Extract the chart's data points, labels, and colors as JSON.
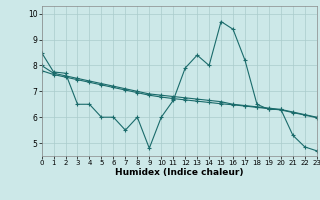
{
  "title": "",
  "xlabel": "Humidex (Indice chaleur)",
  "background_color": "#cce8e8",
  "grid_color": "#aacccc",
  "line_color": "#1a6b6b",
  "xlim": [
    0,
    23
  ],
  "ylim": [
    4.5,
    10.3
  ],
  "yticks": [
    5,
    6,
    7,
    8,
    9,
    10
  ],
  "xticks": [
    0,
    1,
    2,
    3,
    4,
    5,
    6,
    7,
    8,
    9,
    10,
    11,
    12,
    13,
    14,
    15,
    16,
    17,
    18,
    19,
    20,
    21,
    22,
    23
  ],
  "series": [
    {
      "x": [
        0,
        1,
        2,
        3,
        4,
        5,
        6,
        7,
        8,
        9,
        10,
        11,
        12,
        13,
        14,
        15,
        16,
        17,
        18,
        19,
        20,
        21,
        22,
        23
      ],
      "y": [
        8.5,
        7.75,
        7.7,
        6.5,
        6.5,
        6.0,
        6.0,
        5.5,
        6.0,
        4.8,
        6.0,
        6.65,
        7.9,
        8.4,
        8.0,
        9.7,
        9.4,
        8.2,
        6.5,
        6.3,
        6.3,
        5.3,
        4.85,
        4.7
      ]
    },
    {
      "x": [
        0,
        1,
        2,
        3,
        4,
        5,
        6,
        7,
        8,
        9,
        10,
        11,
        12,
        13,
        14,
        15,
        16,
        17,
        18,
        19,
        20,
        21,
        22,
        23
      ],
      "y": [
        8.0,
        7.7,
        7.6,
        7.5,
        7.4,
        7.3,
        7.2,
        7.1,
        7.0,
        6.9,
        6.85,
        6.8,
        6.75,
        6.7,
        6.65,
        6.6,
        6.5,
        6.45,
        6.4,
        6.35,
        6.3,
        6.2,
        6.1,
        6.0
      ]
    },
    {
      "x": [
        0,
        1,
        2,
        3,
        4,
        5,
        6,
        7,
        8,
        9,
        10,
        11,
        12,
        13,
        14,
        15,
        16,
        17,
        18,
        19,
        20,
        21,
        22,
        23
      ],
      "y": [
        7.8,
        7.65,
        7.55,
        7.45,
        7.35,
        7.25,
        7.15,
        7.05,
        6.95,
        6.85,
        6.78,
        6.72,
        6.67,
        6.62,
        6.57,
        6.52,
        6.48,
        6.43,
        6.38,
        6.33,
        6.28,
        6.18,
        6.08,
        5.98
      ]
    }
  ]
}
